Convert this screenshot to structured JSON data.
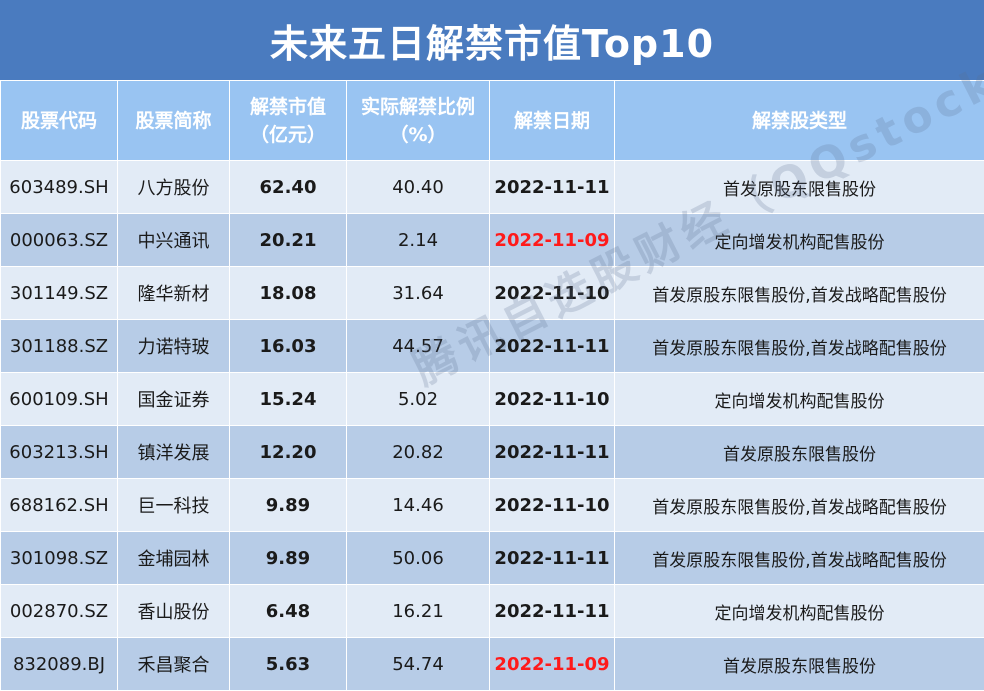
{
  "title": "未来五日解禁市值Top10",
  "headers": {
    "code": "股票代码",
    "name": "股票简称",
    "value_line1": "解禁市值",
    "value_line2": "（亿元）",
    "ratio_line1": "实际解禁比例",
    "ratio_line2": "（%）",
    "date": "解禁日期",
    "type": "解禁股类型"
  },
  "rows": [
    {
      "code": "603489.SH",
      "name": "八方股份",
      "value": "62.40",
      "ratio": "40.40",
      "date": "2022-11-11",
      "type": "首发原股东限售股份"
    },
    {
      "code": "000063.SZ",
      "name": "中兴通讯",
      "value": "20.21",
      "ratio": "2.14",
      "date": "2022-11-09",
      "type": "定向增发机构配售股份"
    },
    {
      "code": "301149.SZ",
      "name": "隆华新材",
      "value": "18.08",
      "ratio": "31.64",
      "date": "2022-11-10",
      "type": "首发原股东限售股份,首发战略配售股份"
    },
    {
      "code": "301188.SZ",
      "name": "力诺特玻",
      "value": "16.03",
      "ratio": "44.57",
      "date": "2022-11-11",
      "type": "首发原股东限售股份,首发战略配售股份"
    },
    {
      "code": "600109.SH",
      "name": "国金证券",
      "value": "15.24",
      "ratio": "5.02",
      "date": "2022-11-10",
      "type": "定向增发机构配售股份"
    },
    {
      "code": "603213.SH",
      "name": "镇洋发展",
      "value": "12.20",
      "ratio": "20.82",
      "date": "2022-11-11",
      "type": "首发原股东限售股份"
    },
    {
      "code": "688162.SH",
      "name": "巨一科技",
      "value": "9.89",
      "ratio": "14.46",
      "date": "2022-11-10",
      "type": "首发原股东限售股份,首发战略配售股份"
    },
    {
      "code": "301098.SZ",
      "name": "金埔园林",
      "value": "9.89",
      "ratio": "50.06",
      "date": "2022-11-11",
      "type": "首发原股东限售股份,首发战略配售股份"
    },
    {
      "code": "002870.SZ",
      "name": "香山股份",
      "value": "6.48",
      "ratio": "16.21",
      "date": "2022-11-11",
      "type": "定向增发机构配售股份"
    },
    {
      "code": "832089.BJ",
      "name": "禾昌聚合",
      "value": "5.63",
      "ratio": "54.74",
      "date": "2022-11-09",
      "type": "首发原股东限售股份"
    }
  ],
  "highlight_date": "2022-11-09",
  "colors": {
    "title_bg": "#4a7bbf",
    "header_bg": "#99c4f2",
    "row_light": "#e2ebf6",
    "row_dark": "#b7cce7",
    "date_highlight": "#ff1a1a"
  },
  "watermark": "腾讯自选股财经（QQstock）"
}
